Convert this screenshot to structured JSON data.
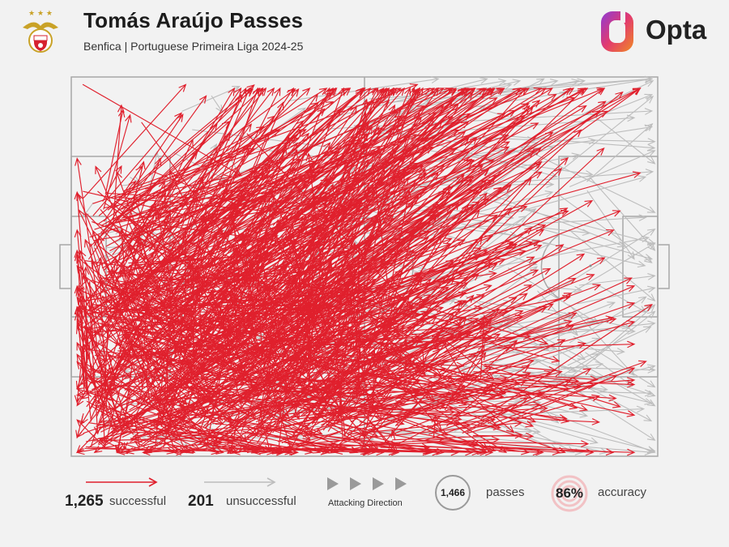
{
  "header": {
    "title": "Tomás Araújo Passes",
    "subtitle": "Benfica | Portuguese Primeira Liga 2024-25",
    "brand": "Opta"
  },
  "colors": {
    "successful": "#e0202d",
    "unsuccessful": "#bdbdbd",
    "pitch_lines": "#a8a8a8",
    "background": "#f2f2f2"
  },
  "legend": {
    "successful_count": "1,265",
    "successful_label": "successful",
    "unsuccessful_count": "201",
    "unsuccessful_label": "unsuccessful",
    "direction_label": "Attacking Direction",
    "passes_total": "1,466",
    "passes_label": "passes",
    "accuracy_value": "86%",
    "accuracy_label": "accuracy"
  },
  "chart_data": {
    "type": "scatter",
    "title": "Tomás Araújo Passes",
    "subtitle": "Benfica | Portuguese Primeira Liga 2024-25",
    "pitch": {
      "x_range": [
        0,
        100
      ],
      "y_range": [
        0,
        100
      ],
      "attacking_direction": "left-to-right"
    },
    "series": [
      {
        "name": "successful",
        "count": 1265,
        "sample_passes": [
          [
            3,
            52,
            23,
            95
          ],
          [
            9,
            70,
            59,
            98
          ],
          [
            17,
            40,
            78,
            93
          ],
          [
            25,
            10,
            94,
            96
          ],
          [
            14,
            75,
            29,
            66
          ],
          [
            5,
            65,
            31,
            18
          ],
          [
            2,
            98,
            29,
            74
          ],
          [
            44,
            30,
            85,
            42
          ],
          [
            60,
            4,
            98,
            25
          ],
          [
            20,
            50,
            66,
            86
          ],
          [
            30,
            85,
            58,
            39
          ],
          [
            50,
            12,
            90,
            9
          ],
          [
            8,
            22,
            47,
            78
          ],
          [
            36,
            60,
            72,
            78
          ],
          [
            70,
            10,
            99,
            40
          ],
          [
            12,
            88,
            38,
            33
          ]
        ]
      },
      {
        "name": "unsuccessful",
        "count": 201,
        "sample_passes": [
          [
            6,
            55,
            98,
            63
          ],
          [
            50,
            88,
            75,
            98
          ],
          [
            80,
            60,
            99,
            52
          ],
          [
            30,
            60,
            61,
            94
          ],
          [
            85,
            30,
            98,
            42
          ],
          [
            88,
            70,
            96,
            52
          ],
          [
            70,
            25,
            99,
            14
          ],
          [
            90,
            45,
            98,
            38
          ]
        ]
      }
    ],
    "total_passes": 1466,
    "accuracy_pct": 86
  }
}
